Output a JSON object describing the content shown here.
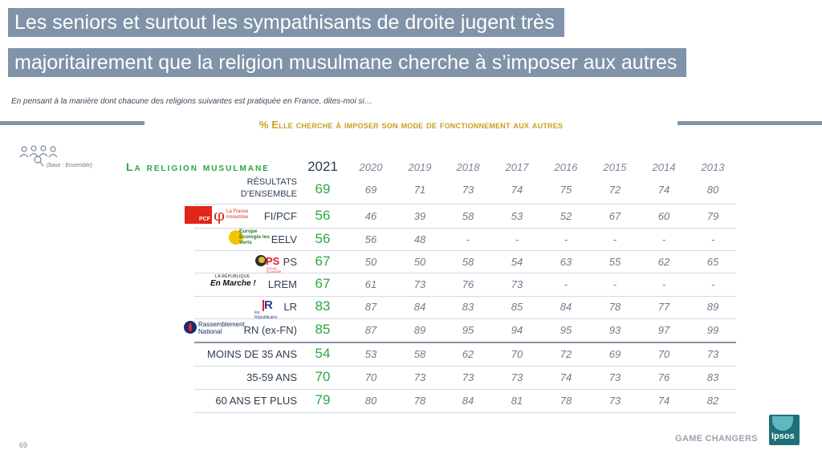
{
  "title": {
    "line1": "Les seniors et surtout les sympathisants de droite jugent très",
    "line2": "majoritairement que la religion musulmane cherche à s’imposer aux autres"
  },
  "subtitle": "En pensant à la manière dont chacune des religions suivantes est pratiquée en France, dites-moi si…",
  "question": "% Elle cherche à imposer son mode de fonctionnement aux autres",
  "base_label": "(base : Ensemble)",
  "section_title": "La religion musulmane",
  "years": [
    "2021",
    "2020",
    "2019",
    "2018",
    "2017",
    "2016",
    "2015",
    "2014",
    "2013"
  ],
  "rows": [
    {
      "label": "RÉSULTATS D’ENSEMBLE",
      "label1": "RÉSULTATS",
      "label2": "D’ENSEMBLE",
      "values": [
        "69",
        "69",
        "71",
        "73",
        "74",
        "75",
        "72",
        "74",
        "80"
      ]
    },
    {
      "label": "FI/PCF",
      "values": [
        "56",
        "46",
        "39",
        "58",
        "53",
        "52",
        "67",
        "60",
        "79"
      ]
    },
    {
      "label": "EELV",
      "values": [
        "56",
        "56",
        "48",
        "-",
        "-",
        "-",
        "-",
        "-",
        "-"
      ]
    },
    {
      "label": "PS",
      "values": [
        "67",
        "50",
        "50",
        "58",
        "54",
        "63",
        "55",
        "62",
        "65"
      ]
    },
    {
      "label": "LREM",
      "values": [
        "67",
        "61",
        "73",
        "76",
        "73",
        "-",
        "-",
        "-",
        "-"
      ]
    },
    {
      "label": "LR",
      "values": [
        "83",
        "87",
        "84",
        "83",
        "85",
        "84",
        "78",
        "77",
        "89"
      ]
    },
    {
      "label": "RN (ex-FN)",
      "values": [
        "85",
        "87",
        "89",
        "95",
        "94",
        "95",
        "93",
        "97",
        "99"
      ]
    },
    {
      "label": "MOINS DE 35 ANS",
      "values": [
        "54",
        "53",
        "58",
        "62",
        "70",
        "72",
        "69",
        "70",
        "73"
      ]
    },
    {
      "label": "35-59 ANS",
      "values": [
        "70",
        "70",
        "73",
        "73",
        "73",
        "74",
        "73",
        "76",
        "83"
      ]
    },
    {
      "label": "60 ANS ET PLUS",
      "values": [
        "79",
        "80",
        "78",
        "84",
        "81",
        "78",
        "73",
        "74",
        "82"
      ]
    }
  ],
  "logos": {
    "pcf": "PCF",
    "lfi": "La France insoumise",
    "eelv": "Europe Écologie les Verts",
    "ps": "PS",
    "ps_sub": "SOCIAL ÉCOLOGIE",
    "lrem_top": "LA RÉPUBLIQUE",
    "lrem_main": "En Marche !",
    "lr_mark": "R",
    "lr_text": "les Républicains",
    "rn": "Rassemblement National"
  },
  "footer": {
    "page_number": "69",
    "tagline": "GAME CHANGERS",
    "brand": "Ipsos"
  },
  "colors": {
    "title_bar": "#8093a8",
    "accent_gold": "#c9a01e",
    "accent_green": "#2aa743"
  }
}
